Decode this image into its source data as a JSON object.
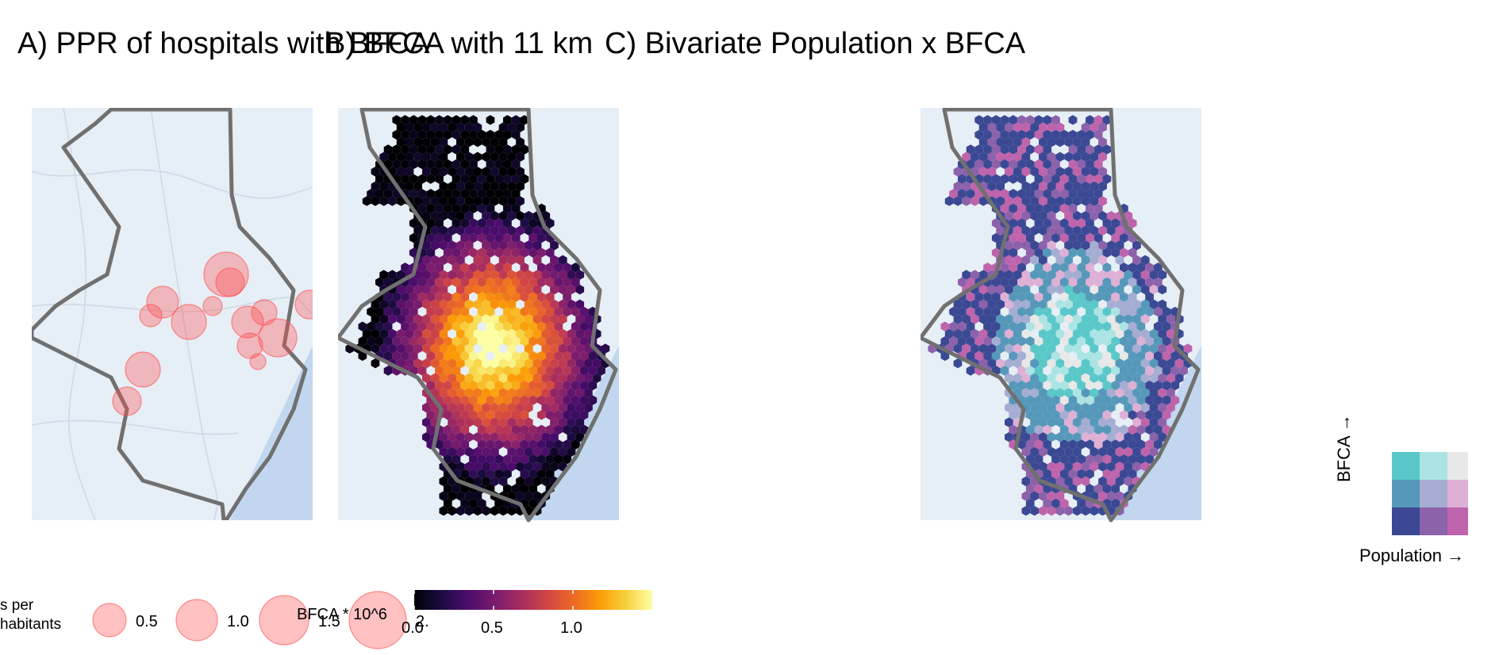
{
  "titles": {
    "a": "A) PPR of hospitals with BFCA",
    "b": "B) BFCA with 11 km",
    "c": "C) Bivariate Population x BFCA"
  },
  "hospital_legend": {
    "title": "s per\nhabitants",
    "sizes": [
      {
        "label": "0.5",
        "value": 0.5
      },
      {
        "label": "1.0",
        "value": 1.0
      },
      {
        "label": "1.5",
        "value": 1.5
      },
      {
        "label": "2.0",
        "value": 2.0
      }
    ]
  },
  "bfca_legend": {
    "title": "BFCA * 10^6",
    "ticks": [
      {
        "label": "0.0",
        "value": 0.0
      },
      {
        "label": "0.5",
        "value": 0.5
      },
      {
        "label": "1.0",
        "value": 1.0
      }
    ],
    "range": [
      0,
      1.5
    ],
    "palette": "inferno"
  },
  "bivariate_legend": {
    "x_label": "Population →",
    "y_label": "BFCA →",
    "grid": [
      [
        "#5ac8c8",
        "#ace4e4",
        "#e8e8e8"
      ],
      [
        "#5698b9",
        "#a5add3",
        "#dfb0d6"
      ],
      [
        "#3b4994",
        "#8c62aa",
        "#be64ac"
      ]
    ]
  },
  "colors": {
    "basemap": "#dde8f2",
    "water": "#c2d7ef",
    "boundary": "#707070",
    "hospital": "#ff4d4d"
  }
}
